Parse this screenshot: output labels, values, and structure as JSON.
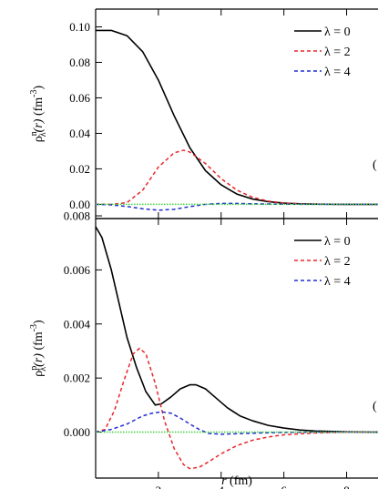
{
  "chart_data": [
    {
      "type": "line",
      "panel": "top",
      "ylabel": {
        "rho": "ρ",
        "sup": "n",
        "sub": "λ",
        "arg": "(r)",
        "unit": " (fm",
        "unit_sup": "-3",
        "unit_close": ")"
      },
      "xlim": [
        0,
        9.0
      ],
      "ylim": [
        -0.008,
        0.11
      ],
      "yticks": [
        0.0,
        0.02,
        0.04,
        0.06,
        0.08,
        0.1
      ],
      "ytick_labels": [
        "0.00",
        "0.02",
        "0.04",
        "0.06",
        "0.08",
        "0.10"
      ],
      "xticks": [
        2,
        4,
        6,
        8
      ],
      "edge_label": "(",
      "legend_placement": "top-right",
      "series": [
        {
          "name": "λ = 0",
          "color": "#000000",
          "dash": "solid",
          "x": [
            0,
            0.5,
            1.0,
            1.5,
            2.0,
            2.5,
            3.0,
            3.5,
            4.0,
            4.5,
            5.0,
            5.5,
            6.0,
            6.5,
            7.0,
            8.0,
            9.0
          ],
          "y": [
            0.098,
            0.098,
            0.095,
            0.086,
            0.07,
            0.05,
            0.032,
            0.019,
            0.011,
            0.0058,
            0.003,
            0.0015,
            0.0007,
            0.0003,
            0.0001,
            0.0,
            0.0
          ]
        },
        {
          "name": "λ = 2",
          "color": "#e8262b",
          "dash": "4,3",
          "x": [
            0,
            0.5,
            1.0,
            1.5,
            2.0,
            2.5,
            2.8,
            3.0,
            3.5,
            4.0,
            4.5,
            5.0,
            5.5,
            6.0,
            6.5,
            7.0,
            8.0,
            9.0
          ],
          "y": [
            0,
            0,
            0.001,
            0.008,
            0.021,
            0.029,
            0.0305,
            0.0295,
            0.023,
            0.0145,
            0.008,
            0.004,
            0.0018,
            0.0008,
            0.0003,
            0.0001,
            0.0,
            0.0
          ]
        },
        {
          "name": "λ = 4",
          "color": "#1f2ecf",
          "dash": "4,3",
          "x": [
            0,
            0.5,
            1.0,
            1.5,
            2.0,
            2.5,
            3.0,
            3.5,
            4.0,
            4.5,
            5.0,
            6.0,
            7.0,
            9.0
          ],
          "y": [
            0,
            -0.0003,
            -0.0012,
            -0.0025,
            -0.0033,
            -0.0028,
            -0.0013,
            0.0,
            0.0005,
            0.0005,
            0.0003,
            0.0001,
            0.0,
            0.0
          ]
        },
        {
          "name": "",
          "color": "#3ecf3e",
          "dash": "1.5,1.5",
          "x": [
            0,
            9.0
          ],
          "y": [
            0,
            0
          ]
        }
      ]
    },
    {
      "type": "line",
      "panel": "bottom",
      "ylabel": {
        "rho": "ρ",
        "sup": "p",
        "sub": "λ",
        "arg": "(r)",
        "unit": " (fm",
        "unit_sup": "-3",
        "unit_close": ")"
      },
      "xlabel": {
        "var": "r",
        "unit": " (fm)"
      },
      "xlim": [
        0,
        9.0
      ],
      "ylim": [
        -0.0017,
        0.0079
      ],
      "yticks": [
        0.0,
        0.002,
        0.004,
        0.006,
        0.008
      ],
      "ytick_labels": [
        "0.000",
        "0.002",
        "0.004",
        "0.006",
        "0.008"
      ],
      "xticks": [
        2,
        4,
        6,
        8
      ],
      "xtick_labels": [
        "2",
        "4",
        "6",
        "8"
      ],
      "edge_label": "(",
      "legend_placement": "top-right",
      "series": [
        {
          "name": "λ = 0",
          "color": "#000000",
          "dash": "solid",
          "x": [
            0,
            0.2,
            0.5,
            0.8,
            1.0,
            1.3,
            1.6,
            1.9,
            2.1,
            2.4,
            2.7,
            3.0,
            3.2,
            3.5,
            3.8,
            4.2,
            4.6,
            5.0,
            5.5,
            6.0,
            6.5,
            7.0,
            8.0,
            9.0
          ],
          "y": [
            0.0076,
            0.0072,
            0.006,
            0.0045,
            0.0035,
            0.0024,
            0.0015,
            0.001,
            0.00105,
            0.0013,
            0.0016,
            0.00175,
            0.00175,
            0.0016,
            0.0013,
            0.0009,
            0.0006,
            0.00042,
            0.00025,
            0.00015,
            8e-05,
            4e-05,
            1e-05,
            0.0
          ]
        },
        {
          "name": "λ = 2",
          "color": "#e8262b",
          "dash": "4,3",
          "x": [
            0,
            0.3,
            0.6,
            0.9,
            1.2,
            1.4,
            1.6,
            1.9,
            2.2,
            2.5,
            2.8,
            3.0,
            3.3,
            3.6,
            4.0,
            4.5,
            5.0,
            5.5,
            6.0,
            7.0,
            8.0,
            9.0
          ],
          "y": [
            0,
            0.0001,
            0.0008,
            0.0019,
            0.0029,
            0.0031,
            0.0029,
            0.0018,
            0.0004,
            -0.0006,
            -0.0012,
            -0.00135,
            -0.0013,
            -0.0011,
            -0.0008,
            -0.0005,
            -0.0003,
            -0.00018,
            -0.0001,
            -3e-05,
            0.0,
            0.0
          ]
        },
        {
          "name": "λ = 4",
          "color": "#1f2ecf",
          "dash": "4,3",
          "x": [
            0,
            0.5,
            1.0,
            1.5,
            1.8,
            2.1,
            2.4,
            2.7,
            3.0,
            3.3,
            3.6,
            4.0,
            4.5,
            5.0,
            6.0,
            7.0,
            9.0
          ],
          "y": [
            0,
            0.0001,
            0.0003,
            0.0006,
            0.0007,
            0.00075,
            0.0007,
            0.00052,
            0.0003,
            0.0001,
            -5e-05,
            -8e-05,
            -6e-05,
            -4e-05,
            -1e-05,
            0.0,
            0.0
          ]
        },
        {
          "name": "",
          "color": "#3ecf3e",
          "dash": "1.5,1.5",
          "x": [
            0,
            9.0
          ],
          "y": [
            0,
            0
          ]
        }
      ]
    }
  ]
}
